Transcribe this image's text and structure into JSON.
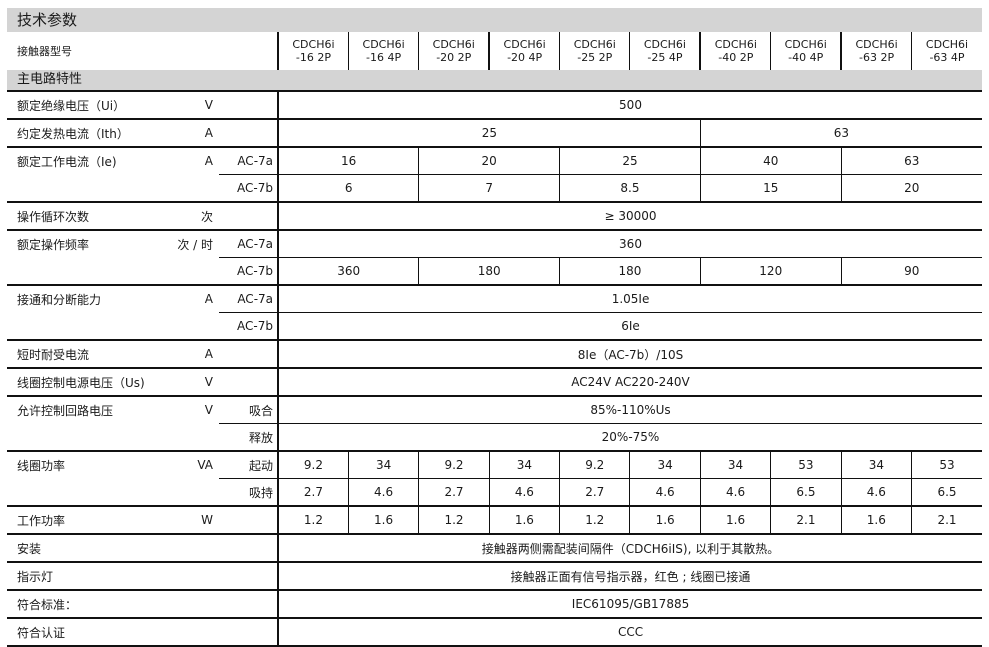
{
  "title": "技术参数",
  "model_label": "接触器型号",
  "models": [
    [
      "CDCH6i",
      "-16  2P"
    ],
    [
      "CDCH6i",
      "-16  4P"
    ],
    [
      "CDCH6i",
      "-20  2P"
    ],
    [
      "CDCH6i",
      "-20  4P"
    ],
    [
      "CDCH6i",
      "-25  2P"
    ],
    [
      "CDCH6i",
      "-25  4P"
    ],
    [
      "CDCH6i",
      "-40  2P"
    ],
    [
      "CDCH6i",
      "-40  4P"
    ],
    [
      "CDCH6i",
      "-63  2P"
    ],
    [
      "CDCH6i",
      "-63  4P"
    ]
  ],
  "section": "主电路特性",
  "rows": [
    {
      "label": "额定绝缘电压（Ui）",
      "unit": "V",
      "sub": "",
      "cells": [
        {
          "v": "500",
          "span": 10
        }
      ]
    },
    {
      "label": "约定发热电流（Ith）",
      "unit": "A",
      "sub": "",
      "cells": [
        {
          "v": "25",
          "span": 6
        },
        {
          "v": "63",
          "span": 4
        }
      ]
    },
    {
      "label": "额定工作电流（Ie)",
      "unit": "A",
      "sub": "AC-7a",
      "cells": [
        {
          "v": "16",
          "span": 2
        },
        {
          "v": "20",
          "span": 2
        },
        {
          "v": "25",
          "span": 2
        },
        {
          "v": "40",
          "span": 2
        },
        {
          "v": "63",
          "span": 2
        }
      ]
    },
    {
      "label": "",
      "unit": "",
      "sub": "AC-7b",
      "cont": true,
      "cells": [
        {
          "v": "6",
          "span": 2
        },
        {
          "v": "7",
          "span": 2
        },
        {
          "v": "8.5",
          "span": 2
        },
        {
          "v": "15",
          "span": 2
        },
        {
          "v": "20",
          "span": 2
        }
      ]
    },
    {
      "label": "操作循环次数",
      "unit": "次",
      "sub": "",
      "cells": [
        {
          "v": "≥ 30000",
          "span": 10
        }
      ]
    },
    {
      "label": "额定操作频率",
      "unit": "次 / 时",
      "sub": "AC-7a",
      "cells": [
        {
          "v": "360",
          "span": 10
        }
      ]
    },
    {
      "label": "",
      "unit": "",
      "sub": "AC-7b",
      "cont": true,
      "cells": [
        {
          "v": "360",
          "span": 2
        },
        {
          "v": "180",
          "span": 2
        },
        {
          "v": "180",
          "span": 2
        },
        {
          "v": "120",
          "span": 2
        },
        {
          "v": "90",
          "span": 2
        }
      ]
    },
    {
      "label": "接通和分断能力",
      "unit": "A",
      "sub": "AC-7a",
      "cells": [
        {
          "v": "1.05Ie",
          "span": 10
        }
      ]
    },
    {
      "label": "",
      "unit": "",
      "sub": "AC-7b",
      "cont": true,
      "cells": [
        {
          "v": "6Ie",
          "span": 10
        }
      ]
    },
    {
      "label": "短时耐受电流",
      "unit": "A",
      "sub": "",
      "cells": [
        {
          "v": "8Ie（AC-7b）/10S",
          "span": 10
        }
      ]
    },
    {
      "label": "线圈控制电源电压（Us)",
      "unit": "V",
      "sub": "",
      "cells": [
        {
          "v": "AC24V   AC220-240V",
          "span": 10
        }
      ]
    },
    {
      "label": "允许控制回路电压",
      "unit": "V",
      "sub": "吸合",
      "cells": [
        {
          "v": "85%-110%Us",
          "span": 10
        }
      ]
    },
    {
      "label": "",
      "unit": "",
      "sub": "释放",
      "cont": true,
      "cells": [
        {
          "v": "20%-75%",
          "span": 10
        }
      ]
    },
    {
      "label": "线圈功率",
      "unit": "VA",
      "sub": "起动",
      "cells": [
        {
          "v": "9.2",
          "span": 1
        },
        {
          "v": "34",
          "span": 1
        },
        {
          "v": "9.2",
          "span": 1
        },
        {
          "v": "34",
          "span": 1
        },
        {
          "v": "9.2",
          "span": 1
        },
        {
          "v": "34",
          "span": 1
        },
        {
          "v": "34",
          "span": 1
        },
        {
          "v": "53",
          "span": 1
        },
        {
          "v": "34",
          "span": 1
        },
        {
          "v": "53",
          "span": 1
        }
      ]
    },
    {
      "label": "",
      "unit": "",
      "sub": "吸持",
      "cont": true,
      "cells": [
        {
          "v": "2.7",
          "span": 1
        },
        {
          "v": "4.6",
          "span": 1
        },
        {
          "v": "2.7",
          "span": 1
        },
        {
          "v": "4.6",
          "span": 1
        },
        {
          "v": "2.7",
          "span": 1
        },
        {
          "v": "4.6",
          "span": 1
        },
        {
          "v": "4.6",
          "span": 1
        },
        {
          "v": "6.5",
          "span": 1
        },
        {
          "v": "4.6",
          "span": 1
        },
        {
          "v": "6.5",
          "span": 1
        }
      ]
    },
    {
      "label": "工作功率",
      "unit": "W",
      "sub": "",
      "cells": [
        {
          "v": "1.2",
          "span": 1
        },
        {
          "v": "1.6",
          "span": 1
        },
        {
          "v": "1.2",
          "span": 1
        },
        {
          "v": "1.6",
          "span": 1
        },
        {
          "v": "1.2",
          "span": 1
        },
        {
          "v": "1.6",
          "span": 1
        },
        {
          "v": "1.6",
          "span": 1
        },
        {
          "v": "2.1",
          "span": 1
        },
        {
          "v": "1.6",
          "span": 1
        },
        {
          "v": "2.1",
          "span": 1
        }
      ]
    },
    {
      "label": "安装",
      "unit": "",
      "sub": "",
      "cells": [
        {
          "v": "接触器两侧需配装间隔件（CDCH6iIS), 以利于其散热。",
          "span": 10
        }
      ]
    },
    {
      "label": "指示灯",
      "unit": "",
      "sub": "",
      "cells": [
        {
          "v": "接触器正面有信号指示器，红色 ; 线圈已接通",
          "span": 10
        }
      ]
    },
    {
      "label": "符合标准：",
      "unit": "",
      "sub": "",
      "cells": [
        {
          "v": "IEC61095/GB17885",
          "span": 10
        }
      ]
    },
    {
      "label": "符合认证",
      "unit": "",
      "sub": "",
      "cells": [
        {
          "v": "CCC",
          "span": 10
        }
      ]
    }
  ]
}
